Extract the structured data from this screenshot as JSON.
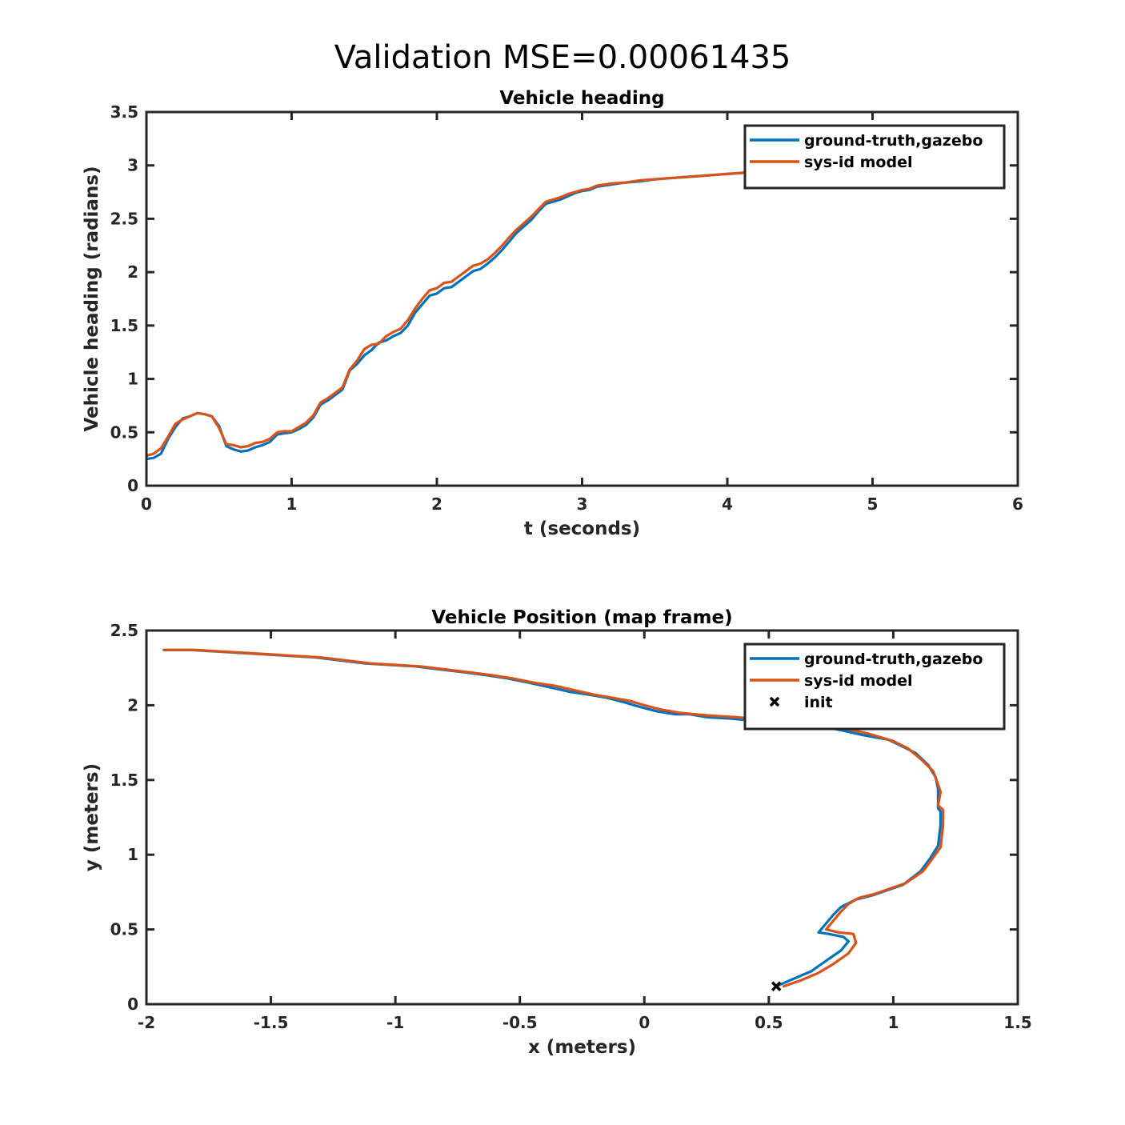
{
  "figure": {
    "suptitle": "Validation MSE=0.00061435"
  },
  "chart_data": [
    {
      "type": "line",
      "title": "Vehicle heading",
      "xlabel": "t (seconds)",
      "ylabel": "Vehicle heading (radians)",
      "xlim": [
        0,
        6
      ],
      "ylim": [
        0,
        3.5
      ],
      "xticks": [
        0,
        1,
        2,
        3,
        4,
        5,
        6
      ],
      "xtick_labels": [
        "0",
        "1",
        "2",
        "3",
        "4",
        "5",
        "6"
      ],
      "yticks": [
        0,
        0.5,
        1,
        1.5,
        2,
        2.5,
        3,
        3.5
      ],
      "ytick_labels": [
        "0",
        "0.5",
        "1",
        "1.5",
        "2",
        "2.5",
        "3",
        "3.5"
      ],
      "grid": false,
      "legend": {
        "location": "top-right"
      },
      "series": [
        {
          "name": "ground-truth,gazebo",
          "color": "#0072BD",
          "x": [
            0,
            0.05,
            0.1,
            0.15,
            0.2,
            0.25,
            0.3,
            0.35,
            0.4,
            0.45,
            0.5,
            0.55,
            0.6,
            0.65,
            0.7,
            0.75,
            0.8,
            0.85,
            0.9,
            0.95,
            1.0,
            1.05,
            1.1,
            1.15,
            1.2,
            1.25,
            1.3,
            1.35,
            1.4,
            1.45,
            1.5,
            1.55,
            1.6,
            1.65,
            1.7,
            1.75,
            1.8,
            1.85,
            1.9,
            1.95,
            2.0,
            2.05,
            2.1,
            2.15,
            2.2,
            2.25,
            2.3,
            2.35,
            2.4,
            2.45,
            2.5,
            2.55,
            2.6,
            2.65,
            2.7,
            2.75,
            2.8,
            2.85,
            2.9,
            2.95,
            3.0,
            3.05,
            3.1,
            3.2,
            3.3,
            3.4,
            3.5,
            3.6,
            3.7,
            3.8,
            3.9,
            4.0,
            4.1,
            4.2
          ],
          "y": [
            0.25,
            0.26,
            0.3,
            0.44,
            0.55,
            0.63,
            0.65,
            0.68,
            0.67,
            0.65,
            0.56,
            0.37,
            0.34,
            0.32,
            0.33,
            0.36,
            0.38,
            0.41,
            0.48,
            0.49,
            0.5,
            0.53,
            0.57,
            0.64,
            0.76,
            0.8,
            0.85,
            0.9,
            1.08,
            1.14,
            1.22,
            1.27,
            1.34,
            1.36,
            1.4,
            1.43,
            1.5,
            1.62,
            1.7,
            1.78,
            1.8,
            1.85,
            1.86,
            1.91,
            1.96,
            2.01,
            2.03,
            2.08,
            2.14,
            2.21,
            2.29,
            2.37,
            2.43,
            2.49,
            2.57,
            2.64,
            2.66,
            2.68,
            2.71,
            2.74,
            2.76,
            2.77,
            2.8,
            2.82,
            2.84,
            2.85,
            2.87,
            2.88,
            2.89,
            2.9,
            2.91,
            2.92,
            2.93,
            2.94
          ]
        },
        {
          "name": "sys-id model",
          "color": "#D95319",
          "x": [
            0,
            0.05,
            0.1,
            0.15,
            0.2,
            0.25,
            0.3,
            0.35,
            0.4,
            0.45,
            0.5,
            0.55,
            0.6,
            0.65,
            0.7,
            0.75,
            0.8,
            0.85,
            0.9,
            0.95,
            1.0,
            1.05,
            1.1,
            1.15,
            1.2,
            1.25,
            1.3,
            1.35,
            1.4,
            1.45,
            1.5,
            1.55,
            1.6,
            1.65,
            1.7,
            1.75,
            1.8,
            1.85,
            1.9,
            1.95,
            2.0,
            2.05,
            2.1,
            2.15,
            2.2,
            2.25,
            2.3,
            2.35,
            2.4,
            2.45,
            2.5,
            2.55,
            2.6,
            2.65,
            2.7,
            2.75,
            2.8,
            2.85,
            2.9,
            2.95,
            3.0,
            3.05,
            3.1,
            3.2,
            3.3,
            3.4,
            3.5,
            3.6,
            3.7,
            3.8,
            3.9,
            4.0,
            4.1,
            4.2
          ],
          "y": [
            0.28,
            0.3,
            0.35,
            0.46,
            0.58,
            0.62,
            0.65,
            0.68,
            0.67,
            0.65,
            0.54,
            0.39,
            0.38,
            0.36,
            0.37,
            0.4,
            0.41,
            0.44,
            0.5,
            0.51,
            0.51,
            0.55,
            0.59,
            0.66,
            0.78,
            0.82,
            0.87,
            0.92,
            1.09,
            1.17,
            1.28,
            1.32,
            1.33,
            1.4,
            1.44,
            1.47,
            1.55,
            1.66,
            1.75,
            1.83,
            1.85,
            1.9,
            1.91,
            1.96,
            2.01,
            2.06,
            2.08,
            2.12,
            2.18,
            2.25,
            2.33,
            2.4,
            2.46,
            2.52,
            2.59,
            2.66,
            2.68,
            2.7,
            2.73,
            2.75,
            2.77,
            2.78,
            2.81,
            2.83,
            2.84,
            2.86,
            2.87,
            2.88,
            2.89,
            2.9,
            2.91,
            2.92,
            2.93,
            2.95
          ]
        }
      ]
    },
    {
      "type": "line",
      "title": "Vehicle Position (map frame)",
      "xlabel": "x (meters)",
      "ylabel": "y (meters)",
      "xlim": [
        -2,
        1.5
      ],
      "ylim": [
        0,
        2.5
      ],
      "xticks": [
        -2,
        -1.5,
        -1,
        -0.5,
        0,
        0.5,
        1,
        1.5
      ],
      "xtick_labels": [
        "-2",
        "-1.5",
        "-1",
        "-0.5",
        "0",
        "0.5",
        "1",
        "1.5"
      ],
      "yticks": [
        0,
        0.5,
        1,
        1.5,
        2,
        2.5
      ],
      "ytick_labels": [
        "0",
        "0.5",
        "1",
        "1.5",
        "2",
        "2.5"
      ],
      "grid": false,
      "legend": {
        "location": "top-right"
      },
      "series": [
        {
          "name": "ground-truth,gazebo",
          "color": "#0072BD",
          "x": [
            0.53,
            0.6,
            0.67,
            0.73,
            0.79,
            0.82,
            0.8,
            0.74,
            0.7,
            0.73,
            0.76,
            0.79,
            0.85,
            0.92,
            1.04,
            1.11,
            1.15,
            1.18,
            1.19,
            1.19,
            1.18,
            1.18,
            1.17,
            1.14,
            1.09,
            1.03,
            0.98,
            0.88,
            0.8,
            0.74,
            0.67,
            0.6,
            0.52,
            0.42,
            0.35,
            0.25,
            0.18,
            0.12,
            0.05,
            -0.02,
            -0.08,
            -0.15,
            -0.22,
            -0.3,
            -0.38,
            -0.46,
            -0.55,
            -0.63,
            -0.72,
            -0.82,
            -0.92,
            -1.02,
            -1.12,
            -1.22,
            -1.32,
            -1.42,
            -1.52,
            -1.62,
            -1.72,
            -1.82,
            -1.93
          ],
          "y": [
            0.12,
            0.17,
            0.22,
            0.29,
            0.36,
            0.42,
            0.45,
            0.47,
            0.48,
            0.54,
            0.6,
            0.65,
            0.7,
            0.73,
            0.8,
            0.89,
            0.98,
            1.06,
            1.2,
            1.29,
            1.31,
            1.44,
            1.52,
            1.6,
            1.68,
            1.73,
            1.77,
            1.8,
            1.83,
            1.85,
            1.87,
            1.88,
            1.89,
            1.9,
            1.91,
            1.92,
            1.94,
            1.94,
            1.96,
            1.99,
            2.02,
            2.05,
            2.07,
            2.09,
            2.12,
            2.15,
            2.18,
            2.2,
            2.22,
            2.24,
            2.26,
            2.27,
            2.28,
            2.3,
            2.32,
            2.33,
            2.34,
            2.35,
            2.36,
            2.37,
            2.37
          ]
        },
        {
          "name": "sys-id model",
          "color": "#D95319",
          "x": [
            0.56,
            0.63,
            0.7,
            0.76,
            0.82,
            0.85,
            0.84,
            0.78,
            0.73,
            0.76,
            0.79,
            0.82,
            0.86,
            0.93,
            1.05,
            1.12,
            1.16,
            1.19,
            1.2,
            1.2,
            1.18,
            1.19,
            1.18,
            1.16,
            1.11,
            1.06,
            1.0,
            0.9,
            0.82,
            0.76,
            0.69,
            0.62,
            0.53,
            0.44,
            0.37,
            0.27,
            0.2,
            0.14,
            0.07,
            0.0,
            -0.06,
            -0.13,
            -0.2,
            -0.28,
            -0.36,
            -0.44,
            -0.53,
            -0.61,
            -0.7,
            -0.8,
            -0.9,
            -1.0,
            -1.1,
            -1.2,
            -1.3,
            -1.4,
            -1.5,
            -1.6,
            -1.7,
            -1.8,
            -1.93
          ],
          "y": [
            0.12,
            0.16,
            0.21,
            0.27,
            0.34,
            0.41,
            0.47,
            0.48,
            0.5,
            0.56,
            0.62,
            0.67,
            0.71,
            0.74,
            0.81,
            0.89,
            0.98,
            1.05,
            1.2,
            1.3,
            1.33,
            1.42,
            1.47,
            1.56,
            1.64,
            1.71,
            1.76,
            1.81,
            1.84,
            1.86,
            1.88,
            1.89,
            1.9,
            1.91,
            1.92,
            1.93,
            1.94,
            1.95,
            1.97,
            2.0,
            2.03,
            2.05,
            2.07,
            2.1,
            2.13,
            2.15,
            2.18,
            2.2,
            2.22,
            2.24,
            2.26,
            2.27,
            2.28,
            2.3,
            2.32,
            2.33,
            2.34,
            2.35,
            2.36,
            2.37,
            2.37
          ]
        },
        {
          "name": "init",
          "type": "marker",
          "marker": "x",
          "color": "#000000",
          "x": [
            0.53
          ],
          "y": [
            0.12
          ]
        }
      ]
    }
  ]
}
